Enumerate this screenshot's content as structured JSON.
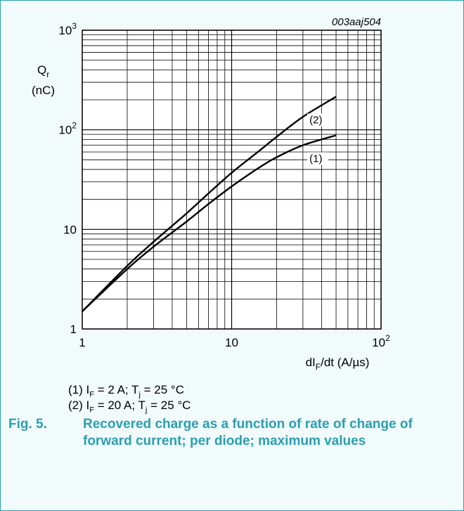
{
  "chart_data": {
    "type": "line",
    "figure_code": "003aaj504",
    "xscale": "log",
    "yscale": "log",
    "xlim": [
      1,
      100
    ],
    "ylim": [
      1,
      1000
    ],
    "x_ticks": [
      {
        "value": 1,
        "base": "1",
        "exp": ""
      },
      {
        "value": 10,
        "base": "10",
        "exp": ""
      },
      {
        "value": 100,
        "base": "10",
        "exp": "2"
      }
    ],
    "y_ticks": [
      {
        "value": 1,
        "base": "1",
        "exp": ""
      },
      {
        "value": 10,
        "base": "10",
        "exp": ""
      },
      {
        "value": 100,
        "base": "10",
        "exp": "2"
      },
      {
        "value": 1000,
        "base": "10",
        "exp": "3"
      }
    ],
    "xlabel": {
      "main": "dI",
      "sub": "F",
      "rest": "/dt (A/µs)"
    },
    "ylabel": {
      "main": "Q",
      "sub": "r",
      "unit": "(nC)"
    },
    "grid": true,
    "series": [
      {
        "name": "(1)",
        "x": [
          1,
          2,
          3,
          5,
          7,
          10,
          15,
          20,
          30,
          50
        ],
        "y": [
          1.5,
          4.0,
          6.7,
          12.0,
          18.0,
          27.0,
          41.0,
          53.0,
          70.0,
          88.0
        ]
      },
      {
        "name": "(2)",
        "x": [
          1,
          2,
          3,
          5,
          7,
          10,
          15,
          20,
          30,
          50
        ],
        "y": [
          1.5,
          4.3,
          7.5,
          14.5,
          23.0,
          37.0,
          60.0,
          85.0,
          135.0,
          215.0
        ]
      }
    ]
  },
  "legend": {
    "item1": {
      "prefix": "(1) I",
      "sub1": "F",
      "mid": " = 2 A; T",
      "sub2": "j",
      "rest": " = 25 °C"
    },
    "item2": {
      "prefix": "(2) I",
      "sub1": "F",
      "mid": " = 20 A; T",
      "sub2": "j",
      "rest": " = 25 °C"
    }
  },
  "caption": {
    "number": "Fig. 5.",
    "text": "Recovered charge as a function of rate of change of forward current; per diode; maximum values"
  }
}
